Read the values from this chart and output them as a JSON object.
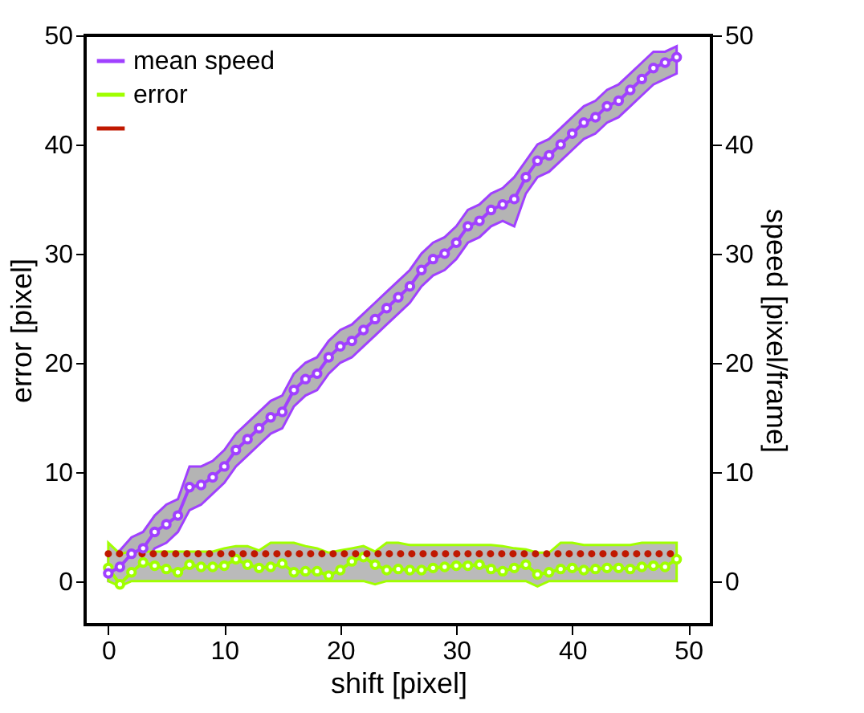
{
  "chart_data": {
    "type": "line",
    "xlabel": "shift [pixel]",
    "ylabel": "error [pixel]",
    "y2label": "speed [pixel/frame]",
    "x": [
      0,
      1,
      2,
      3,
      4,
      5,
      6,
      7,
      8,
      9,
      10,
      11,
      12,
      13,
      14,
      15,
      16,
      17,
      18,
      19,
      20,
      21,
      22,
      23,
      24,
      25,
      26,
      27,
      28,
      29,
      30,
      31,
      32,
      33,
      34,
      35,
      36,
      37,
      38,
      39,
      40,
      41,
      42,
      43,
      44,
      45,
      46,
      47,
      48,
      49
    ],
    "xlim": [
      -2,
      52
    ],
    "xticks": [
      0,
      10,
      20,
      30,
      40,
      50
    ],
    "ylim": [
      -4,
      50
    ],
    "yticks": [
      0,
      10,
      20,
      30,
      40,
      50
    ],
    "y2lim": [
      -4,
      50
    ],
    "y2ticks": [
      0,
      10,
      20,
      30,
      40,
      50
    ],
    "legend": "top left",
    "marker": "circle",
    "grid": false,
    "series": [
      {
        "name": "mean speed",
        "color": "#a040ff",
        "axis": "y2",
        "values": [
          0.7,
          1.3,
          2.5,
          3,
          4.5,
          5.2,
          6,
          8.6,
          8.8,
          9.5,
          10.5,
          12,
          13,
          14,
          15,
          15.5,
          17.5,
          18.5,
          19,
          20.5,
          21.5,
          22,
          23,
          24,
          25,
          26,
          27,
          28.5,
          29.5,
          30,
          31,
          32.5,
          33,
          34,
          34.5,
          35,
          37,
          38.5,
          39,
          40,
          41,
          42,
          42.5,
          43.5,
          44,
          45,
          46,
          47,
          47.5,
          48
        ],
        "lower": [
          0,
          0,
          1,
          1.5,
          3,
          3.5,
          4.5,
          6.5,
          7,
          8,
          9,
          10.5,
          11.5,
          12.5,
          13.5,
          14,
          16,
          17,
          17.5,
          19,
          20,
          20.5,
          21.5,
          22.5,
          23.5,
          24.5,
          25.5,
          27,
          28,
          28.5,
          29.5,
          31,
          31.5,
          32.5,
          33,
          32.5,
          35.5,
          37,
          37.5,
          38.5,
          39.5,
          40.5,
          41,
          42,
          42.5,
          43.5,
          44.5,
          45.5,
          46,
          46.5
        ],
        "upper": [
          2.5,
          2.8,
          4,
          4.5,
          6,
          7,
          7.5,
          10.5,
          10.5,
          11,
          12,
          13.5,
          14.5,
          15.5,
          16.5,
          17,
          19,
          20,
          20.5,
          22,
          23,
          23.5,
          24.5,
          25.5,
          26.5,
          27.5,
          28.5,
          30,
          31,
          31.5,
          32.5,
          34,
          34.5,
          35.5,
          36,
          37,
          38.5,
          40,
          40.5,
          41.5,
          42.5,
          43.5,
          44,
          45,
          45.5,
          46.5,
          47.5,
          48.5,
          48.5,
          49
        ]
      },
      {
        "name": "error",
        "color": "#a0ff00",
        "values": [
          1.2,
          -0.3,
          0.8,
          1.7,
          1.4,
          1.1,
          0.8,
          1.5,
          1.3,
          1.3,
          1.4,
          2,
          1.5,
          1.2,
          1.3,
          1.6,
          0.8,
          0.9,
          0.9,
          0.5,
          1,
          1.8,
          2.2,
          1.5,
          1,
          1.1,
          1,
          1,
          1.2,
          1.3,
          1.4,
          1.4,
          1.5,
          1.1,
          0.9,
          1.2,
          1.5,
          0.6,
          0.8,
          1.1,
          1.2,
          1,
          1.1,
          1.2,
          1.2,
          1.1,
          1.3,
          1.4,
          1.3,
          2
        ],
        "lower": [
          0,
          -0.5,
          0,
          0,
          0,
          0,
          0,
          0,
          0,
          0,
          0,
          0,
          0,
          0,
          0,
          0,
          0,
          0,
          0,
          0,
          0,
          0,
          0,
          -0.3,
          0,
          0,
          0,
          0,
          0,
          0,
          0,
          0,
          0,
          0,
          0,
          0,
          0,
          -0.5,
          0,
          0,
          0,
          0,
          0,
          0,
          0,
          0,
          0,
          0,
          0,
          0
        ],
        "upper": [
          3.5,
          2.5,
          2.7,
          2.7,
          2.7,
          2.7,
          2.7,
          2.7,
          2.7,
          2.7,
          3,
          3.2,
          3.2,
          2.8,
          3.5,
          3.5,
          3.5,
          3.2,
          3,
          2.6,
          2.8,
          3,
          3.2,
          2.7,
          3.5,
          3.5,
          3.3,
          3.3,
          3.3,
          3.3,
          3.3,
          3.3,
          3.3,
          3.3,
          3.2,
          3,
          2.9,
          2.6,
          2.6,
          3.5,
          3.5,
          3.3,
          3.3,
          3.3,
          3.3,
          3.3,
          3.5,
          3.5,
          3.5,
          3.5
        ]
      },
      {
        "color": "#c01800",
        "line_style": "dotted",
        "marker": "none",
        "values": [
          2.5,
          2.5,
          2.5,
          2.5,
          2.5,
          2.5,
          2.5,
          2.5,
          2.5,
          2.5,
          2.5,
          2.5,
          2.5,
          2.5,
          2.5,
          2.5,
          2.5,
          2.5,
          2.5,
          2.5,
          2.5,
          2.5,
          2.5,
          2.5,
          2.5,
          2.5,
          2.5,
          2.5,
          2.5,
          2.5,
          2.5,
          2.5,
          2.5,
          2.5,
          2.5,
          2.5,
          2.5,
          2.5,
          2.5,
          2.5,
          2.5,
          2.5,
          2.5,
          2.5,
          2.5,
          2.5,
          2.5,
          2.5,
          2.5,
          2.5
        ]
      }
    ]
  }
}
